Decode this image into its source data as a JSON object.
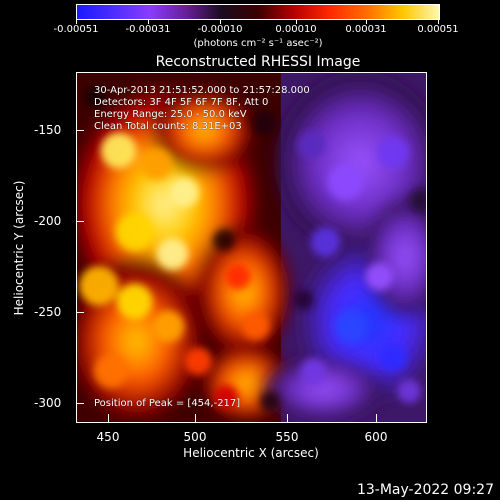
{
  "colorbar": {
    "labels": [
      "-0.00051",
      "-0.00031",
      "-0.00010",
      "0.00010",
      "0.00031",
      "0.00051"
    ],
    "units": "(photons cm⁻² s⁻¹ asec⁻²)"
  },
  "title": "Reconstructed RHESSI Image",
  "annotations": {
    "time_range": "30-Apr-2013 21:51:52.000 to 21:57:28.000",
    "detectors": "Detectors: 3F 4F 5F 6F 7F 8F, Att 0",
    "energy_range": "Energy Range: 25.0 - 50.0 keV",
    "clean_counts": "Clean     Total counts: 8.31E+03",
    "peak_position": "Position of Peak = [454,-217]"
  },
  "axes": {
    "x_label": "Heliocentric X (arcsec)",
    "y_label": "Heliocentric Y (arcsec)",
    "x_ticks": [
      "450",
      "500",
      "550",
      "600"
    ],
    "y_ticks": [
      "-150",
      "-200",
      "-250",
      "-300"
    ]
  },
  "footer_timestamp": "13-May-2022 09:27",
  "colors": {
    "background": "#000000",
    "foreground": "#ffffff"
  }
}
